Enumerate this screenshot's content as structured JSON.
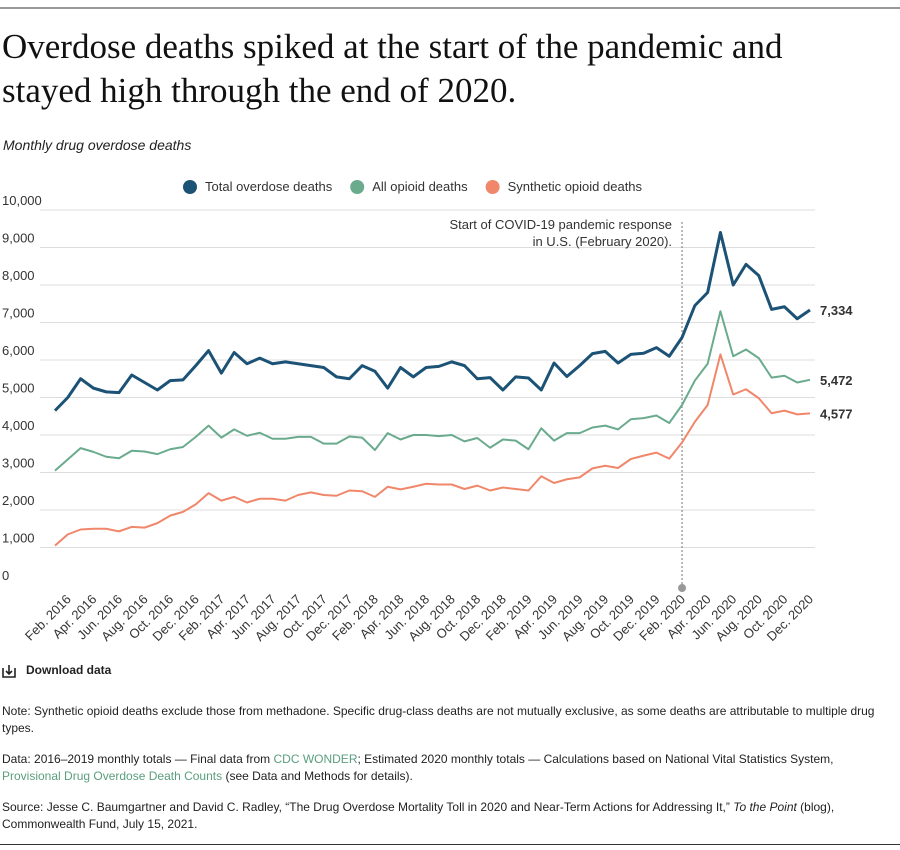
{
  "chart_data": {
    "type": "line",
    "title_lines": [
      "Overdose deaths spiked at the start of the pandemic and",
      "stayed high through the end of 2020."
    ],
    "subtitle": "Monthly drug overdose deaths",
    "categories": [
      null,
      "Feb. 2016",
      null,
      "Apr. 2016",
      null,
      "Jun. 2016",
      null,
      "Aug. 2016",
      null,
      "Oct. 2016",
      null,
      "Dec. 2016",
      null,
      "Feb. 2017",
      null,
      "Apr. 2017",
      null,
      "Jun. 2017",
      null,
      "Aug. 2017",
      null,
      "Oct. 2017",
      null,
      "Dec. 2017",
      null,
      "Feb. 2018",
      null,
      "Apr. 2018",
      null,
      "Jun. 2018",
      null,
      "Aug. 2018",
      null,
      "Oct. 2018",
      null,
      "Dec. 2018",
      null,
      "Feb. 2019",
      null,
      "Apr. 2019",
      null,
      "Jun. 2019",
      null,
      "Aug. 2019",
      null,
      "Oct. 2019",
      null,
      "Dec. 2019",
      null,
      "Feb. 2020",
      null,
      "Apr. 2020",
      null,
      "Jun. 2020",
      null,
      "Aug. 2020",
      null,
      "Oct. 2020",
      null,
      "Dec. 2020"
    ],
    "series": [
      {
        "name": "Total overdose deaths",
        "color": "#1b5275",
        "values": [
          4650,
          5000,
          5500,
          5250,
          5150,
          5130,
          5600,
          5400,
          5200,
          5450,
          5470,
          5850,
          6250,
          5650,
          6200,
          5900,
          6050,
          5900,
          5950,
          5900,
          5850,
          5800,
          5550,
          5500,
          5850,
          5700,
          5250,
          5800,
          5550,
          5800,
          5830,
          5950,
          5850,
          5500,
          5530,
          5200,
          5550,
          5520,
          5200,
          5920,
          5560,
          5850,
          6170,
          6230,
          5920,
          6150,
          6180,
          6330,
          6100,
          6600,
          7450,
          7800,
          9400,
          8000,
          8550,
          8250,
          7350,
          7420,
          7100,
          7334
        ],
        "value_labels": [
          null,
          null,
          null,
          null,
          null,
          null,
          null,
          null,
          null,
          null,
          null,
          null,
          null,
          null,
          null,
          null,
          null,
          null,
          null,
          null,
          null,
          null,
          null,
          null,
          null,
          null,
          null,
          null,
          null,
          null,
          null,
          null,
          null,
          null,
          null,
          null,
          null,
          null,
          null,
          null,
          null,
          null,
          null,
          null,
          null,
          null,
          null,
          null,
          null,
          null,
          null,
          null,
          null,
          null,
          null,
          null,
          null,
          null,
          null,
          "7,334"
        ]
      },
      {
        "name": "All opioid deaths",
        "color": "#6aab8e",
        "values": [
          3050,
          3350,
          3650,
          3550,
          3420,
          3380,
          3580,
          3560,
          3490,
          3620,
          3680,
          3950,
          4250,
          3930,
          4150,
          3980,
          4060,
          3900,
          3900,
          3950,
          3950,
          3770,
          3770,
          3960,
          3930,
          3600,
          4050,
          3880,
          4000,
          4000,
          3970,
          4000,
          3830,
          3920,
          3660,
          3880,
          3850,
          3620,
          4180,
          3850,
          4050,
          4050,
          4200,
          4250,
          4150,
          4420,
          4450,
          4520,
          4320,
          4800,
          5450,
          5900,
          7300,
          6100,
          6280,
          6050,
          5530,
          5580,
          5400,
          5472
        ],
        "value_labels": [
          null,
          null,
          null,
          null,
          null,
          null,
          null,
          null,
          null,
          null,
          null,
          null,
          null,
          null,
          null,
          null,
          null,
          null,
          null,
          null,
          null,
          null,
          null,
          null,
          null,
          null,
          null,
          null,
          null,
          null,
          null,
          null,
          null,
          null,
          null,
          null,
          null,
          null,
          null,
          null,
          null,
          null,
          null,
          null,
          null,
          null,
          null,
          null,
          null,
          null,
          null,
          null,
          null,
          null,
          null,
          null,
          null,
          null,
          null,
          "5,472"
        ]
      },
      {
        "name": "Synthetic opioid deaths",
        "color": "#f0876a",
        "values": [
          1050,
          1350,
          1480,
          1500,
          1500,
          1430,
          1550,
          1530,
          1650,
          1850,
          1950,
          2150,
          2450,
          2250,
          2350,
          2200,
          2300,
          2300,
          2250,
          2400,
          2470,
          2400,
          2380,
          2520,
          2500,
          2350,
          2620,
          2550,
          2620,
          2700,
          2680,
          2680,
          2560,
          2650,
          2520,
          2600,
          2560,
          2520,
          2900,
          2720,
          2820,
          2870,
          3110,
          3180,
          3120,
          3360,
          3450,
          3530,
          3370,
          3800,
          4350,
          4800,
          6150,
          5080,
          5220,
          4980,
          4580,
          4650,
          4550,
          4577
        ],
        "value_labels": [
          null,
          null,
          null,
          null,
          null,
          null,
          null,
          null,
          null,
          null,
          null,
          null,
          null,
          null,
          null,
          null,
          null,
          null,
          null,
          null,
          null,
          null,
          null,
          null,
          null,
          null,
          null,
          null,
          null,
          null,
          null,
          null,
          null,
          null,
          null,
          null,
          null,
          null,
          null,
          null,
          null,
          null,
          null,
          null,
          null,
          null,
          null,
          null,
          null,
          null,
          null,
          null,
          null,
          null,
          null,
          null,
          null,
          null,
          null,
          "4,577"
        ]
      }
    ],
    "ylim": [
      0,
      10000
    ],
    "yticks": [
      0,
      {
        "value": 1000,
        "label": "1,000"
      },
      {
        "value": 2000,
        "label": "2,000"
      },
      {
        "value": 3000,
        "label": "3,000"
      },
      {
        "value": 4000,
        "label": "4,000"
      },
      {
        "value": 5000,
        "label": "5,000"
      },
      {
        "value": 6000,
        "label": "6,000"
      },
      {
        "value": 7000,
        "label": "7,000"
      },
      {
        "value": 8000,
        "label": "8,000"
      },
      {
        "value": 9000,
        "label": "9,000"
      },
      {
        "value": 10000,
        "label": "10,000"
      }
    ],
    "grid": true,
    "annotation": {
      "category": "Feb. 2020",
      "lines": [
        "Start of COVID-19 pandemic response",
        "in U.S. (February 2020)."
      ]
    }
  },
  "footer": {
    "download": "Download data",
    "note": "Note: Synthetic opioid deaths exclude those from methadone. Specific drug-class deaths are not mutually exclusive, as some deaths are attributable to multiple drug types.",
    "data": [
      "Data: 2016–2019 monthly totals — Final data from ",
      "CDC WONDER",
      "; Estimated 2020 monthly totals — Calculations based on National Vital Statistics System, ",
      "Provisional Drug Overdose Death Counts",
      " (see Data and Methods for details)."
    ],
    "source": [
      "Source: Jesse C. Baumgartner and David C. Radley, “The Drug Overdose Mortality Toll in 2020 and Near-Term Actions for Addressing It,” ",
      "To the Point",
      " (blog), Commonwealth Fund, July 15, 2021."
    ]
  }
}
